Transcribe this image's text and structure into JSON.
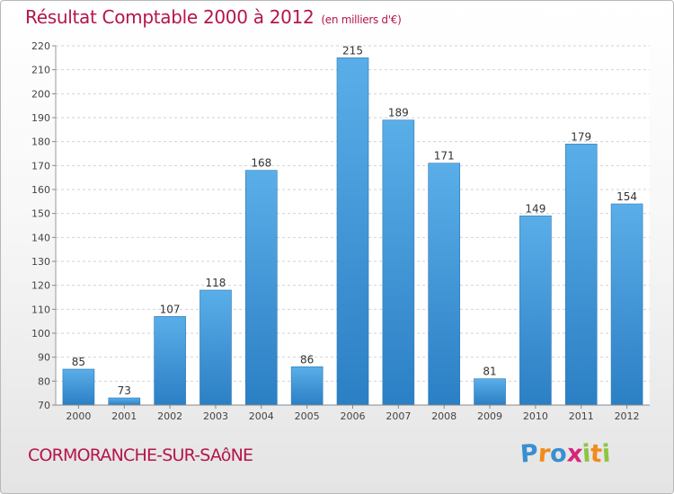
{
  "chart_data": {
    "type": "bar",
    "title": "Résultat Comptable 2000 à 2012",
    "subtitle": "(en milliers d'€)",
    "categories": [
      "2000",
      "2001",
      "2002",
      "2003",
      "2004",
      "2005",
      "2006",
      "2007",
      "2008",
      "2009",
      "2010",
      "2011",
      "2012"
    ],
    "values": [
      85,
      73,
      107,
      118,
      168,
      86,
      215,
      189,
      171,
      81,
      149,
      179,
      154
    ],
    "ylim": [
      70,
      220
    ],
    "yticks": [
      70,
      80,
      90,
      100,
      110,
      120,
      130,
      140,
      150,
      160,
      170,
      180,
      190,
      200,
      210,
      220
    ],
    "grid": true,
    "bar_color_light": "#5aaee8",
    "bar_color_dark": "#2b7fc4",
    "title_color": "#b5154b"
  },
  "footer": {
    "commune": "CORMORANCHE-SUR-SAôNE",
    "logo_letters": [
      "P",
      "r",
      "o",
      "x",
      "i",
      "t",
      "i"
    ],
    "logo_colors": [
      "#3a8fd0",
      "#f28a1c",
      "#3a8fd0",
      "#d6267a",
      "#8cc63f",
      "#f28a1c",
      "#8cc63f"
    ]
  }
}
